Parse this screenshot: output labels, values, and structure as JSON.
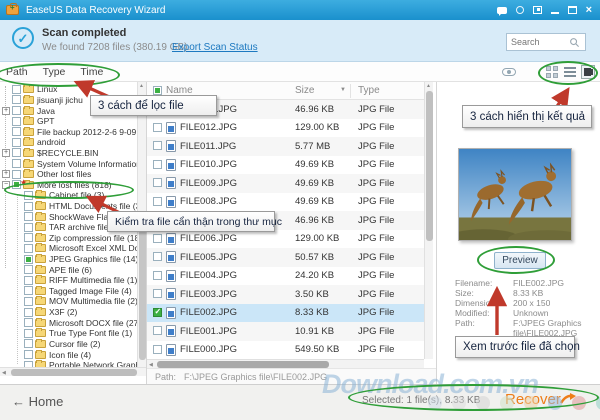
{
  "app": {
    "title": "EaseUS Data Recovery Wizard"
  },
  "window_icons": [
    "chat-icon",
    "status-circle-icon",
    "window-icon",
    "minimize-icon",
    "maximize-icon",
    "close-icon"
  ],
  "banner": {
    "title": "Scan completed",
    "subtitle": "We found 7208 files (380.19 GB).",
    "export_link": "Export Scan Status",
    "search_placeholder": "Search"
  },
  "filter_tabs": [
    "Path",
    "Type",
    "Time"
  ],
  "view_icons": [
    "eye-icon",
    "grid-view-icon",
    "list-view-icon",
    "detail-view-icon"
  ],
  "tree": {
    "items": [
      {
        "label": "Linux",
        "level": 0,
        "expand": null,
        "check": "empty",
        "star": false
      },
      {
        "label": "jisuanji jichu",
        "level": 0,
        "expand": null,
        "check": "empty",
        "star": false
      },
      {
        "label": "Java",
        "level": 0,
        "expand": "plus",
        "check": "empty",
        "star": false
      },
      {
        "label": "GPT",
        "level": 0,
        "expand": null,
        "check": "empty",
        "star": false
      },
      {
        "label": "File backup 2012-2-6 9-09",
        "level": 0,
        "expand": null,
        "check": "empty",
        "star": false
      },
      {
        "label": "android",
        "level": 0,
        "expand": null,
        "check": "empty",
        "star": false
      },
      {
        "label": "$RECYCLE.BIN",
        "level": 0,
        "expand": "plus",
        "check": "empty",
        "star": false
      },
      {
        "label": "System Volume Information",
        "level": 0,
        "expand": null,
        "check": "empty",
        "star": false
      },
      {
        "label": "Other lost files",
        "level": 0,
        "expand": "plus",
        "check": "empty",
        "star": false
      },
      {
        "label": "More lost files (818)",
        "level": 0,
        "expand": "minus",
        "check": "partial",
        "star": true
      },
      {
        "label": "Cabinet file (3)",
        "level": 1,
        "expand": null,
        "check": "empty",
        "star": false
      },
      {
        "label": "HTML Documents file (36)",
        "level": 1,
        "expand": null,
        "check": "empty",
        "star": false
      },
      {
        "label": "ShockWave Flash file",
        "level": 1,
        "expand": null,
        "check": "empty",
        "star": false
      },
      {
        "label": "TAR archive file (9)",
        "level": 1,
        "expand": null,
        "check": "empty",
        "star": false
      },
      {
        "label": "Zip compression file (18)",
        "level": 1,
        "expand": null,
        "check": "empty",
        "star": false
      },
      {
        "label": "Microsoft Excel XML Doc",
        "level": 1,
        "expand": null,
        "check": "empty",
        "star": false
      },
      {
        "label": "JPEG Graphics file (14)",
        "level": 1,
        "expand": null,
        "check": "partial",
        "star": false
      },
      {
        "label": "APE file (6)",
        "level": 1,
        "expand": null,
        "check": "empty",
        "star": false
      },
      {
        "label": "RIFF Multimedia file (1)",
        "level": 1,
        "expand": null,
        "check": "empty",
        "star": false
      },
      {
        "label": "Tagged Image File (4)",
        "level": 1,
        "expand": null,
        "check": "empty",
        "star": false
      },
      {
        "label": "MOV Multimedia file (2)",
        "level": 1,
        "expand": null,
        "check": "empty",
        "star": false
      },
      {
        "label": "X3F (2)",
        "level": 1,
        "expand": null,
        "check": "empty",
        "star": false
      },
      {
        "label": "Microsoft DOCX file (27)",
        "level": 1,
        "expand": null,
        "check": "empty",
        "star": false
      },
      {
        "label": "True Type Font file (1)",
        "level": 1,
        "expand": null,
        "check": "empty",
        "star": false
      },
      {
        "label": "Cursor file (2)",
        "level": 1,
        "expand": null,
        "check": "empty",
        "star": false
      },
      {
        "label": "Icon file (4)",
        "level": 1,
        "expand": null,
        "check": "empty",
        "star": false
      },
      {
        "label": "Portable Network Graphi",
        "level": 1,
        "expand": null,
        "check": "empty",
        "star": false
      }
    ]
  },
  "file_list": {
    "columns": [
      "Name",
      "Size",
      "Type"
    ],
    "rows": [
      {
        "name": "FILE013.JPG",
        "size": "46.96 KB",
        "type": "JPG File",
        "checked": false,
        "selected": false
      },
      {
        "name": "FILE012.JPG",
        "size": "129.00 KB",
        "type": "JPG File",
        "checked": false,
        "selected": false
      },
      {
        "name": "FILE011.JPG",
        "size": "5.77 MB",
        "type": "JPG File",
        "checked": false,
        "selected": false
      },
      {
        "name": "FILE010.JPG",
        "size": "49.69 KB",
        "type": "JPG File",
        "checked": false,
        "selected": false
      },
      {
        "name": "FILE009.JPG",
        "size": "49.69 KB",
        "type": "JPG File",
        "checked": false,
        "selected": false
      },
      {
        "name": "FILE008.JPG",
        "size": "49.69 KB",
        "type": "JPG File",
        "checked": false,
        "selected": false
      },
      {
        "name": "FILE007.JPG",
        "size": "46.96 KB",
        "type": "JPG File",
        "checked": false,
        "selected": false
      },
      {
        "name": "FILE006.JPG",
        "size": "129.00 KB",
        "type": "JPG File",
        "checked": false,
        "selected": false
      },
      {
        "name": "FILE005.JPG",
        "size": "50.57 KB",
        "type": "JPG File",
        "checked": false,
        "selected": false
      },
      {
        "name": "FILE004.JPG",
        "size": "24.20 KB",
        "type": "JPG File",
        "checked": false,
        "selected": false
      },
      {
        "name": "FILE003.JPG",
        "size": "3.50 KB",
        "type": "JPG File",
        "checked": false,
        "selected": false
      },
      {
        "name": "FILE002.JPG",
        "size": "8.33 KB",
        "type": "JPG File",
        "checked": true,
        "selected": true
      },
      {
        "name": "FILE001.JPG",
        "size": "10.91 KB",
        "type": "JPG File",
        "checked": false,
        "selected": false
      },
      {
        "name": "FILE000.JPG",
        "size": "549.50 KB",
        "type": "JPG File",
        "checked": false,
        "selected": false
      }
    ],
    "path_label": "Path:",
    "path_value": "F:\\JPEG Graphics file\\FILE002.JPG"
  },
  "preview": {
    "button_label": "Preview",
    "details": [
      {
        "label": "Filename:",
        "value": "FILE002.JPG"
      },
      {
        "label": "Size:",
        "value": "8.33 KB"
      },
      {
        "label": "Dimensions:",
        "value": "200 x 150"
      },
      {
        "label": "Modified:",
        "value": "Unknown"
      },
      {
        "label": "Path:",
        "value": "F:\\JPEG Graphics file\\FILE002.JPG"
      }
    ]
  },
  "footer": {
    "home_label": "Home",
    "selected_text": "Selected: 1 file(s), 8.33 KB",
    "recover_label": "Recover"
  },
  "annotations": {
    "callout_filter": "3 cách để lọc file",
    "callout_check": "Kiểm tra file cẩn thận trong thư mục",
    "callout_views": "3 cách hiển thị kết quả",
    "callout_preview": "Xem trước file đã chọn"
  },
  "watermark": {
    "text": "Download.com.vn",
    "dot_colors": [
      "#cfdbe6",
      "#dcdcdc",
      "#d4d4d4",
      "#cfe0c8",
      "#eccfa6",
      "#92b8e0",
      "#df9898",
      "#8fcfc4"
    ]
  },
  "colors": {
    "titlebar": "#1a90cd",
    "banner": "#d8ebf8",
    "accent_blue": "#2aa2d8",
    "link_blue": "#1d79c0",
    "annotation_green": "#2f9e38",
    "annotation_red": "#c0392b",
    "recover_orange": "#ee7d18",
    "selected_row": "#cbe6f8",
    "check_green": "#3cb043"
  }
}
